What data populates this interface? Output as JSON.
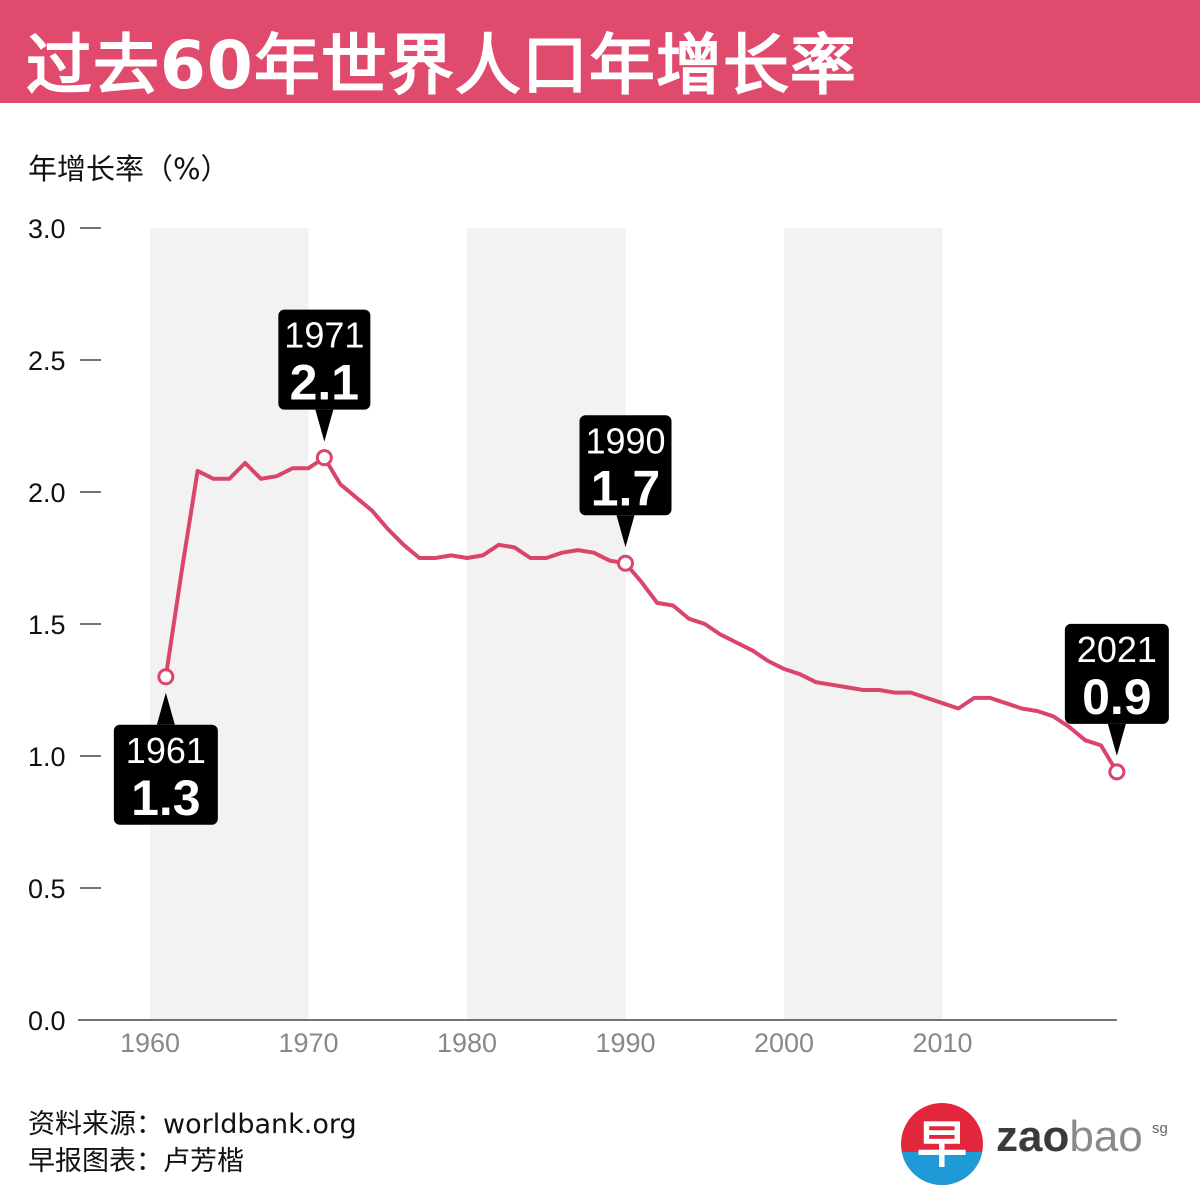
{
  "header": {
    "title": "过去60年世界人口年增长率"
  },
  "footer": {
    "source_line": "资料来源：worldbank.org",
    "credit_line": "早报图表：卢芳楷"
  },
  "logo": {
    "glyph": "早",
    "text_a": "zao",
    "text_b": "bao",
    "suffix": "sg"
  },
  "colors": {
    "title_bar": "#df4a6d",
    "line": "#d9456b",
    "band": "#f2f2f2",
    "callout": "#000000"
  },
  "chart_data": {
    "type": "line",
    "title": "过去60年世界人口年增长率",
    "ylabel": "年增长率（%）",
    "xlabel": "",
    "ylim": [
      0,
      3.0
    ],
    "xlim": [
      1960,
      2021
    ],
    "yticks": [
      "0.0",
      "0.5",
      "1.0",
      "1.5",
      "2.0",
      "2.5",
      "3.0"
    ],
    "xticks": [
      "1960",
      "1970",
      "1980",
      "1990",
      "2000",
      "2010"
    ],
    "shaded_bands": [
      [
        1960,
        1970
      ],
      [
        1980,
        1990
      ],
      [
        2000,
        2010
      ]
    ],
    "grid": false,
    "x": [
      1961,
      1962,
      1963,
      1964,
      1965,
      1966,
      1967,
      1968,
      1969,
      1970,
      1971,
      1972,
      1973,
      1974,
      1975,
      1976,
      1977,
      1978,
      1979,
      1980,
      1981,
      1982,
      1983,
      1984,
      1985,
      1986,
      1987,
      1988,
      1989,
      1990,
      1991,
      1992,
      1993,
      1994,
      1995,
      1996,
      1997,
      1998,
      1999,
      2000,
      2001,
      2002,
      2003,
      2004,
      2005,
      2006,
      2007,
      2008,
      2009,
      2010,
      2011,
      2012,
      2013,
      2014,
      2015,
      2016,
      2017,
      2018,
      2019,
      2020,
      2021
    ],
    "values": [
      1.3,
      1.7,
      2.08,
      2.05,
      2.05,
      2.11,
      2.05,
      2.06,
      2.09,
      2.09,
      2.13,
      2.03,
      1.98,
      1.93,
      1.86,
      1.8,
      1.75,
      1.75,
      1.76,
      1.75,
      1.76,
      1.8,
      1.79,
      1.75,
      1.75,
      1.77,
      1.78,
      1.77,
      1.74,
      1.73,
      1.66,
      1.58,
      1.57,
      1.52,
      1.5,
      1.46,
      1.43,
      1.4,
      1.36,
      1.33,
      1.31,
      1.28,
      1.27,
      1.26,
      1.25,
      1.25,
      1.24,
      1.24,
      1.22,
      1.2,
      1.18,
      1.22,
      1.22,
      1.2,
      1.18,
      1.17,
      1.15,
      1.11,
      1.06,
      1.04,
      0.94
    ],
    "annotations": [
      {
        "year": "1961",
        "value": "1.3",
        "x": 1961,
        "y": 1.3,
        "position": "below"
      },
      {
        "year": "1971",
        "value": "2.1",
        "x": 1971,
        "y": 2.13,
        "position": "above"
      },
      {
        "year": "1990",
        "value": "1.7",
        "x": 1990,
        "y": 1.73,
        "position": "above"
      },
      {
        "year": "2021",
        "value": "0.9",
        "x": 2021,
        "y": 0.94,
        "position": "above"
      }
    ]
  }
}
